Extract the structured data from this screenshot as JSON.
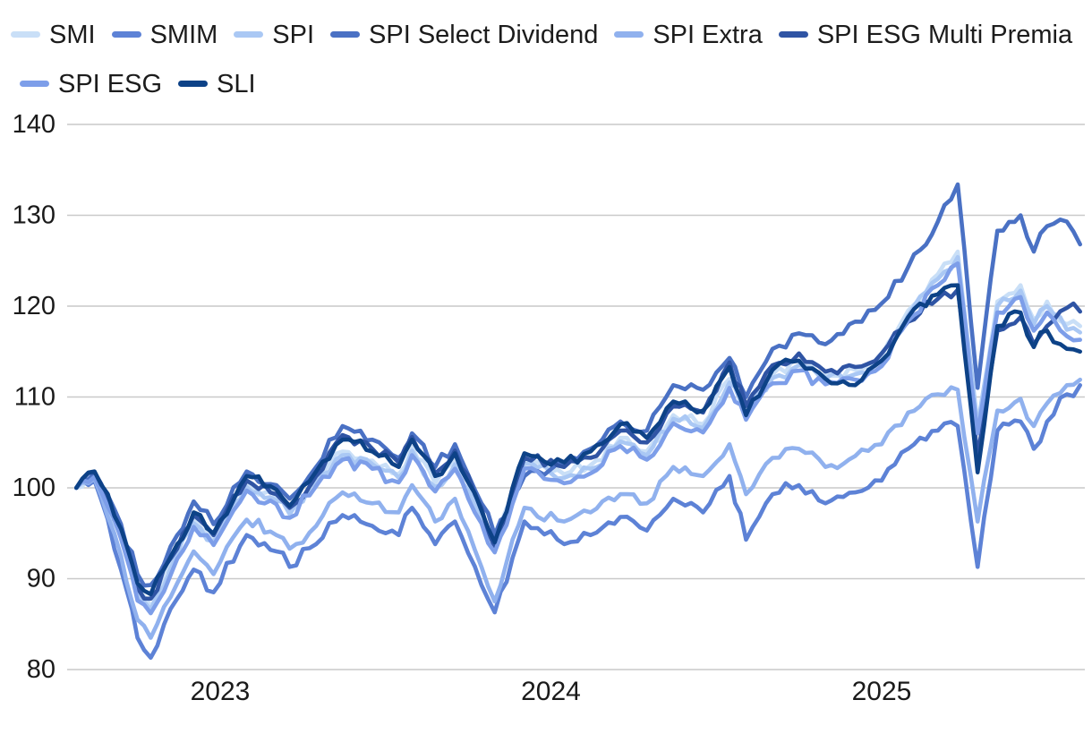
{
  "legend": {
    "position": "top",
    "rows_note": "wraps to two lines"
  },
  "chart_data": {
    "type": "line",
    "title": "",
    "xlabel": "",
    "ylabel": "",
    "grid": "horizontal-only",
    "legend_position": "top",
    "x_range": [
      2022.555,
      2025.615
    ],
    "y_range": [
      80,
      140
    ],
    "y_ticks": [
      {
        "label": "80",
        "value": 80
      },
      {
        "label": "90",
        "value": 90
      },
      {
        "label": "100",
        "value": 100
      },
      {
        "label": "110",
        "value": 110
      },
      {
        "label": "120",
        "value": 120
      },
      {
        "label": "130",
        "value": 130
      },
      {
        "label": "140",
        "value": 140
      }
    ],
    "x_ticks": [
      {
        "label": "2023",
        "value": 2023
      },
      {
        "label": "2024",
        "value": 2024
      },
      {
        "label": "2025",
        "value": 2025
      }
    ],
    "x": [
      2022.565,
      2022.62,
      2022.7,
      2022.75,
      2022.79,
      2022.87,
      2022.92,
      2022.98,
      2023.08,
      2023.17,
      2023.21,
      2023.29,
      2023.37,
      2023.46,
      2023.54,
      2023.58,
      2023.65,
      2023.71,
      2023.79,
      2023.83,
      2023.92,
      2024.04,
      2024.12,
      2024.21,
      2024.29,
      2024.37,
      2024.46,
      2024.54,
      2024.59,
      2024.67,
      2024.75,
      2024.83,
      2024.92,
      2025.0,
      2025.08,
      2025.17,
      2025.23,
      2025.29,
      2025.35,
      2025.42,
      2025.46,
      2025.5,
      2025.56,
      2025.6
    ],
    "series": [
      {
        "name": "SMI",
        "color": "#c9dff7",
        "values": [
          100,
          101.5,
          95,
          88.5,
          87,
          93,
          96.5,
          94.5,
          100.5,
          99,
          97.5,
          101,
          104,
          103,
          101.5,
          104.5,
          100.5,
          103,
          97,
          93.8,
          103,
          101.5,
          102.5,
          105.5,
          104,
          108,
          107,
          112,
          108.5,
          112.5,
          114,
          112.5,
          113,
          114.5,
          119.5,
          123.5,
          126,
          107,
          120.5,
          122.3,
          118.5,
          120.5,
          118,
          117.8
        ]
      },
      {
        "name": "SMIM",
        "color": "#5d82d6",
        "values": [
          100,
          100.8,
          91,
          83.5,
          81.3,
          87.8,
          91,
          88.5,
          94.8,
          93,
          91.3,
          93.8,
          97,
          95.8,
          94.8,
          97.8,
          93.8,
          96.3,
          89.3,
          86.3,
          96.3,
          93.8,
          94.8,
          96.8,
          95.3,
          98.8,
          97.3,
          101.3,
          94.3,
          99.3,
          100.3,
          98.3,
          99.5,
          100.8,
          104.3,
          106.3,
          106.8,
          91.3,
          106.3,
          107.3,
          104.3,
          107.3,
          110.3,
          111.3
        ]
      },
      {
        "name": "SPI",
        "color": "#aac8f4",
        "values": [
          100,
          101.3,
          94.7,
          88,
          86.6,
          92.6,
          96.1,
          94.1,
          100.1,
          98.6,
          97.1,
          100.6,
          103.6,
          102.6,
          101.1,
          104.1,
          100.1,
          102.6,
          96.6,
          93.4,
          102.6,
          101.1,
          102.1,
          105.1,
          103.6,
          107.6,
          106.6,
          111.6,
          108.1,
          112.1,
          113.5,
          112,
          112.5,
          114,
          119,
          123,
          125.4,
          106.6,
          120,
          121.7,
          118,
          120,
          117.4,
          117.1
        ]
      },
      {
        "name": "SPI Select Dividend",
        "color": "#4a71c4",
        "values": [
          100,
          101.6,
          96,
          90.5,
          89.3,
          94.8,
          98.5,
          96,
          101.8,
          100.3,
          98.8,
          102.3,
          106.8,
          105.3,
          103.3,
          106,
          102.3,
          104.8,
          98.3,
          94.8,
          101.3,
          102.8,
          104.3,
          107.3,
          106.3,
          111.3,
          110.8,
          114.3,
          110,
          115.3,
          117,
          115.8,
          118.3,
          120.3,
          124.3,
          129.3,
          133.4,
          111,
          128.3,
          130,
          126,
          128.8,
          129.3,
          126.8
        ]
      },
      {
        "name": "SPI Extra",
        "color": "#90b1ee",
        "values": [
          100,
          101,
          92.5,
          85.5,
          83.5,
          89.5,
          93,
          90.5,
          96.5,
          94.8,
          93.3,
          95.8,
          99.5,
          98.3,
          97.3,
          100.3,
          96.3,
          98.8,
          91.3,
          87.5,
          97.8,
          96.3,
          97.3,
          99.3,
          98.3,
          102.3,
          101.3,
          104.8,
          99.3,
          103.3,
          104.3,
          102.3,
          103.5,
          104.8,
          108.3,
          110.3,
          110.8,
          96.3,
          108.5,
          109.8,
          106.8,
          109.3,
          111.3,
          111.9
        ]
      },
      {
        "name": "SPI ESG Multi Premia",
        "color": "#2f54a4",
        "values": [
          100,
          101.7,
          95.2,
          89,
          87.8,
          93.3,
          97,
          94.8,
          100.8,
          99.3,
          97.8,
          101.3,
          105.8,
          104.3,
          102.8,
          105.6,
          101.6,
          104.1,
          97.8,
          93.5,
          103.3,
          102.3,
          103.3,
          106.3,
          105,
          109,
          108.3,
          113.8,
          109,
          113.5,
          114.8,
          112.8,
          113.3,
          114.8,
          118.3,
          120.8,
          121.8,
          103.5,
          117.3,
          118.8,
          115.8,
          117.8,
          119.8,
          119.4
        ]
      },
      {
        "name": "SPI ESG",
        "color": "#7d9ee9",
        "values": [
          100,
          101.2,
          94.4,
          87.6,
          86.2,
          92.2,
          95.7,
          93.7,
          99.7,
          98.2,
          96.7,
          100.2,
          103.1,
          102.1,
          100.6,
          103.6,
          99.6,
          102.1,
          96.1,
          92.9,
          102.1,
          100.5,
          101.6,
          104.6,
          103.1,
          107.1,
          106.1,
          111,
          107.5,
          111.5,
          112.9,
          111.4,
          111.9,
          113.4,
          118.4,
          122.3,
          124.7,
          106,
          119.3,
          121,
          117.3,
          119.3,
          116.7,
          116.3
        ]
      },
      {
        "name": "SLI",
        "color": "#0d4287",
        "values": [
          100,
          101.8,
          95.5,
          89.5,
          88.3,
          93.8,
          97.3,
          95,
          101.3,
          99.8,
          98,
          101.8,
          105.3,
          104,
          102.3,
          105.3,
          101.3,
          103.8,
          97.5,
          94,
          103.8,
          102.8,
          104,
          107,
          105.5,
          109.5,
          108.5,
          113.3,
          108,
          113,
          114,
          112,
          111.3,
          114,
          118.8,
          121.3,
          122.3,
          101.7,
          117.8,
          119.3,
          115.5,
          117.3,
          115.3,
          115
        ]
      }
    ],
    "style": {
      "gridline_color": "#c9c9c9",
      "axis_label_color": "#1a1a1a",
      "line_width": 4.6
    }
  }
}
